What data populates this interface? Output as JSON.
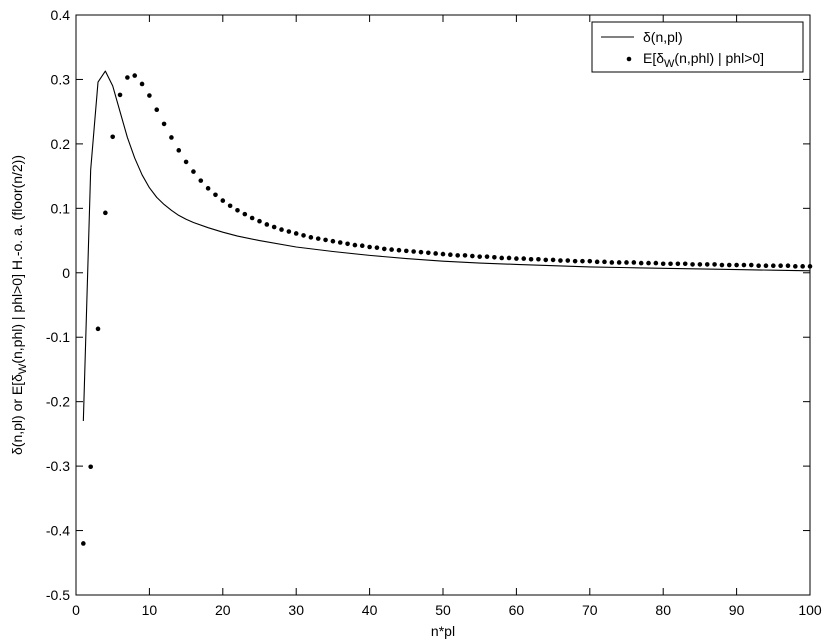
{
  "chart_data": {
    "type": "line",
    "xlabel": "n*pl",
    "ylabel": {
      "main": "δ(n,pl) or E[δ",
      "sub": "W",
      "rest": "(n,phl) | phl>0]   H.-o. a. (floor(n/2))"
    },
    "xlim": [
      0,
      100
    ],
    "ylim": [
      -0.5,
      0.4
    ],
    "xticks": [
      "0",
      "10",
      "20",
      "30",
      "40",
      "50",
      "60",
      "70",
      "80",
      "90",
      "100"
    ],
    "yticks": [
      "-0.5",
      "-0.4",
      "-0.3",
      "-0.2",
      "-0.1",
      "0",
      "0.1",
      "0.2",
      "0.3",
      "0.4"
    ],
    "grid": false,
    "legend_position": "top-right",
    "series": [
      {
        "name": "δ(n,pl)",
        "style": "solid-line",
        "color": "#000000",
        "points": [
          [
            1,
            -0.23
          ],
          [
            2,
            0.16
          ],
          [
            3,
            0.296
          ],
          [
            4,
            0.313
          ],
          [
            5,
            0.29
          ],
          [
            6,
            0.25
          ],
          [
            7,
            0.21
          ],
          [
            8,
            0.178
          ],
          [
            9,
            0.152
          ],
          [
            10,
            0.132
          ],
          [
            11,
            0.117
          ],
          [
            12,
            0.106
          ],
          [
            13,
            0.097
          ],
          [
            14,
            0.089
          ],
          [
            15,
            0.083
          ],
          [
            16,
            0.078
          ],
          [
            18,
            0.07
          ],
          [
            20,
            0.063
          ],
          [
            22,
            0.057
          ],
          [
            25,
            0.05
          ],
          [
            30,
            0.04
          ],
          [
            35,
            0.033
          ],
          [
            40,
            0.027
          ],
          [
            45,
            0.022
          ],
          [
            50,
            0.018
          ],
          [
            55,
            0.015
          ],
          [
            60,
            0.013
          ],
          [
            65,
            0.011
          ],
          [
            70,
            0.009
          ],
          [
            75,
            0.008
          ],
          [
            80,
            0.007
          ],
          [
            85,
            0.006
          ],
          [
            90,
            0.005
          ],
          [
            95,
            0.004
          ],
          [
            100,
            0.003
          ]
        ]
      },
      {
        "name_parts": {
          "main": "E[δ",
          "sub": "W",
          "rest": "(n,phl) | phl>0]"
        },
        "style": "dots",
        "color": "#000000",
        "points": [
          [
            1,
            -0.42
          ],
          [
            2,
            -0.301
          ],
          [
            3,
            -0.087
          ],
          [
            4,
            0.093
          ],
          [
            5,
            0.211
          ],
          [
            6,
            0.276
          ],
          [
            7,
            0.303
          ],
          [
            8,
            0.306
          ],
          [
            9,
            0.293
          ],
          [
            10,
            0.275
          ],
          [
            11,
            0.253
          ],
          [
            12,
            0.231
          ],
          [
            13,
            0.21
          ],
          [
            14,
            0.19
          ],
          [
            15,
            0.172
          ],
          [
            16,
            0.157
          ],
          [
            17,
            0.143
          ],
          [
            18,
            0.131
          ],
          [
            19,
            0.121
          ],
          [
            20,
            0.112
          ],
          [
            21,
            0.104
          ],
          [
            22,
            0.097
          ],
          [
            23,
            0.091
          ],
          [
            24,
            0.085
          ],
          [
            25,
            0.08
          ],
          [
            26,
            0.075
          ],
          [
            27,
            0.071
          ],
          [
            28,
            0.067
          ],
          [
            29,
            0.064
          ],
          [
            30,
            0.061
          ],
          [
            31,
            0.058
          ],
          [
            32,
            0.055
          ],
          [
            33,
            0.053
          ],
          [
            34,
            0.051
          ],
          [
            35,
            0.049
          ],
          [
            36,
            0.047
          ],
          [
            37,
            0.045
          ],
          [
            38,
            0.043
          ],
          [
            39,
            0.042
          ],
          [
            40,
            0.04
          ],
          [
            41,
            0.039
          ],
          [
            42,
            0.037
          ],
          [
            43,
            0.036
          ],
          [
            44,
            0.035
          ],
          [
            45,
            0.034
          ],
          [
            46,
            0.033
          ],
          [
            47,
            0.032
          ],
          [
            48,
            0.031
          ],
          [
            49,
            0.03
          ],
          [
            50,
            0.029
          ],
          [
            51,
            0.028
          ],
          [
            52,
            0.027
          ],
          [
            53,
            0.027
          ],
          [
            54,
            0.026
          ],
          [
            55,
            0.025
          ],
          [
            56,
            0.025
          ],
          [
            57,
            0.024
          ],
          [
            58,
            0.023
          ],
          [
            59,
            0.023
          ],
          [
            60,
            0.022
          ],
          [
            61,
            0.022
          ],
          [
            62,
            0.021
          ],
          [
            63,
            0.021
          ],
          [
            64,
            0.02
          ],
          [
            65,
            0.02
          ],
          [
            66,
            0.019
          ],
          [
            67,
            0.019
          ],
          [
            68,
            0.018
          ],
          [
            69,
            0.018
          ],
          [
            70,
            0.018
          ],
          [
            71,
            0.017
          ],
          [
            72,
            0.017
          ],
          [
            73,
            0.016
          ],
          [
            74,
            0.016
          ],
          [
            75,
            0.016
          ],
          [
            76,
            0.016
          ],
          [
            77,
            0.015
          ],
          [
            78,
            0.015
          ],
          [
            79,
            0.015
          ],
          [
            80,
            0.014
          ],
          [
            81,
            0.014
          ],
          [
            82,
            0.014
          ],
          [
            83,
            0.014
          ],
          [
            84,
            0.013
          ],
          [
            85,
            0.013
          ],
          [
            86,
            0.013
          ],
          [
            87,
            0.013
          ],
          [
            88,
            0.012
          ],
          [
            89,
            0.012
          ],
          [
            90,
            0.012
          ],
          [
            91,
            0.012
          ],
          [
            92,
            0.012
          ],
          [
            93,
            0.011
          ],
          [
            94,
            0.011
          ],
          [
            95,
            0.011
          ],
          [
            96,
            0.011
          ],
          [
            97,
            0.011
          ],
          [
            98,
            0.01
          ],
          [
            99,
            0.01
          ],
          [
            100,
            0.01
          ]
        ]
      }
    ]
  }
}
